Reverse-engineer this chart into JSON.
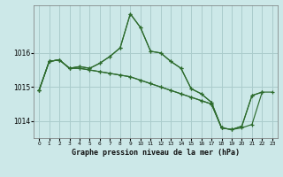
{
  "title": "Graphe pression niveau de la mer (hPa)",
  "bg_color": "#cce8e8",
  "grid_color": "#aacccc",
  "line_color": "#2d6b2d",
  "xlim": [
    -0.5,
    23.5
  ],
  "ylim": [
    1013.5,
    1017.4
  ],
  "yticks": [
    1014,
    1015,
    1016
  ],
  "xticks": [
    0,
    1,
    2,
    3,
    4,
    5,
    6,
    7,
    8,
    9,
    10,
    11,
    12,
    13,
    14,
    15,
    16,
    17,
    18,
    19,
    20,
    21,
    22,
    23
  ],
  "series": [
    [
      1014.9,
      1015.75,
      1015.8,
      1015.55,
      1015.6,
      1015.55,
      1015.7,
      1015.9,
      1016.15,
      1017.15,
      1016.75,
      1016.05,
      1016.0,
      1015.75,
      1015.55,
      1014.95,
      1014.8,
      1014.55,
      1013.8,
      null,
      null,
      null,
      null,
      null
    ],
    [
      1014.9,
      1015.75,
      1015.8,
      1015.55,
      1015.6,
      1015.55,
      1015.7,
      1015.9,
      1016.15,
      1017.15,
      1016.75,
      1016.05,
      1016.0,
      1015.75,
      1015.55,
      1014.95,
      1014.8,
      1014.55,
      1013.8,
      1013.75,
      1013.85,
      1014.75,
      1014.85,
      null
    ],
    [
      1014.9,
      1015.75,
      1015.8,
      1015.55,
      1015.55,
      1015.5,
      1015.45,
      1015.4,
      1015.35,
      1015.3,
      1015.2,
      1015.1,
      1015.0,
      1014.9,
      1014.8,
      1014.7,
      1014.6,
      1014.5,
      1013.8,
      1013.75,
      1013.85,
      1014.75,
      1014.85,
      null
    ],
    [
      1014.9,
      1015.75,
      1015.8,
      1015.55,
      1015.55,
      1015.5,
      1015.45,
      1015.4,
      1015.35,
      1015.3,
      1015.2,
      1015.1,
      1015.0,
      1014.9,
      1014.8,
      1014.7,
      1014.6,
      1014.5,
      1013.8,
      1013.75,
      1013.8,
      1013.9,
      1014.85,
      1014.85
    ]
  ]
}
